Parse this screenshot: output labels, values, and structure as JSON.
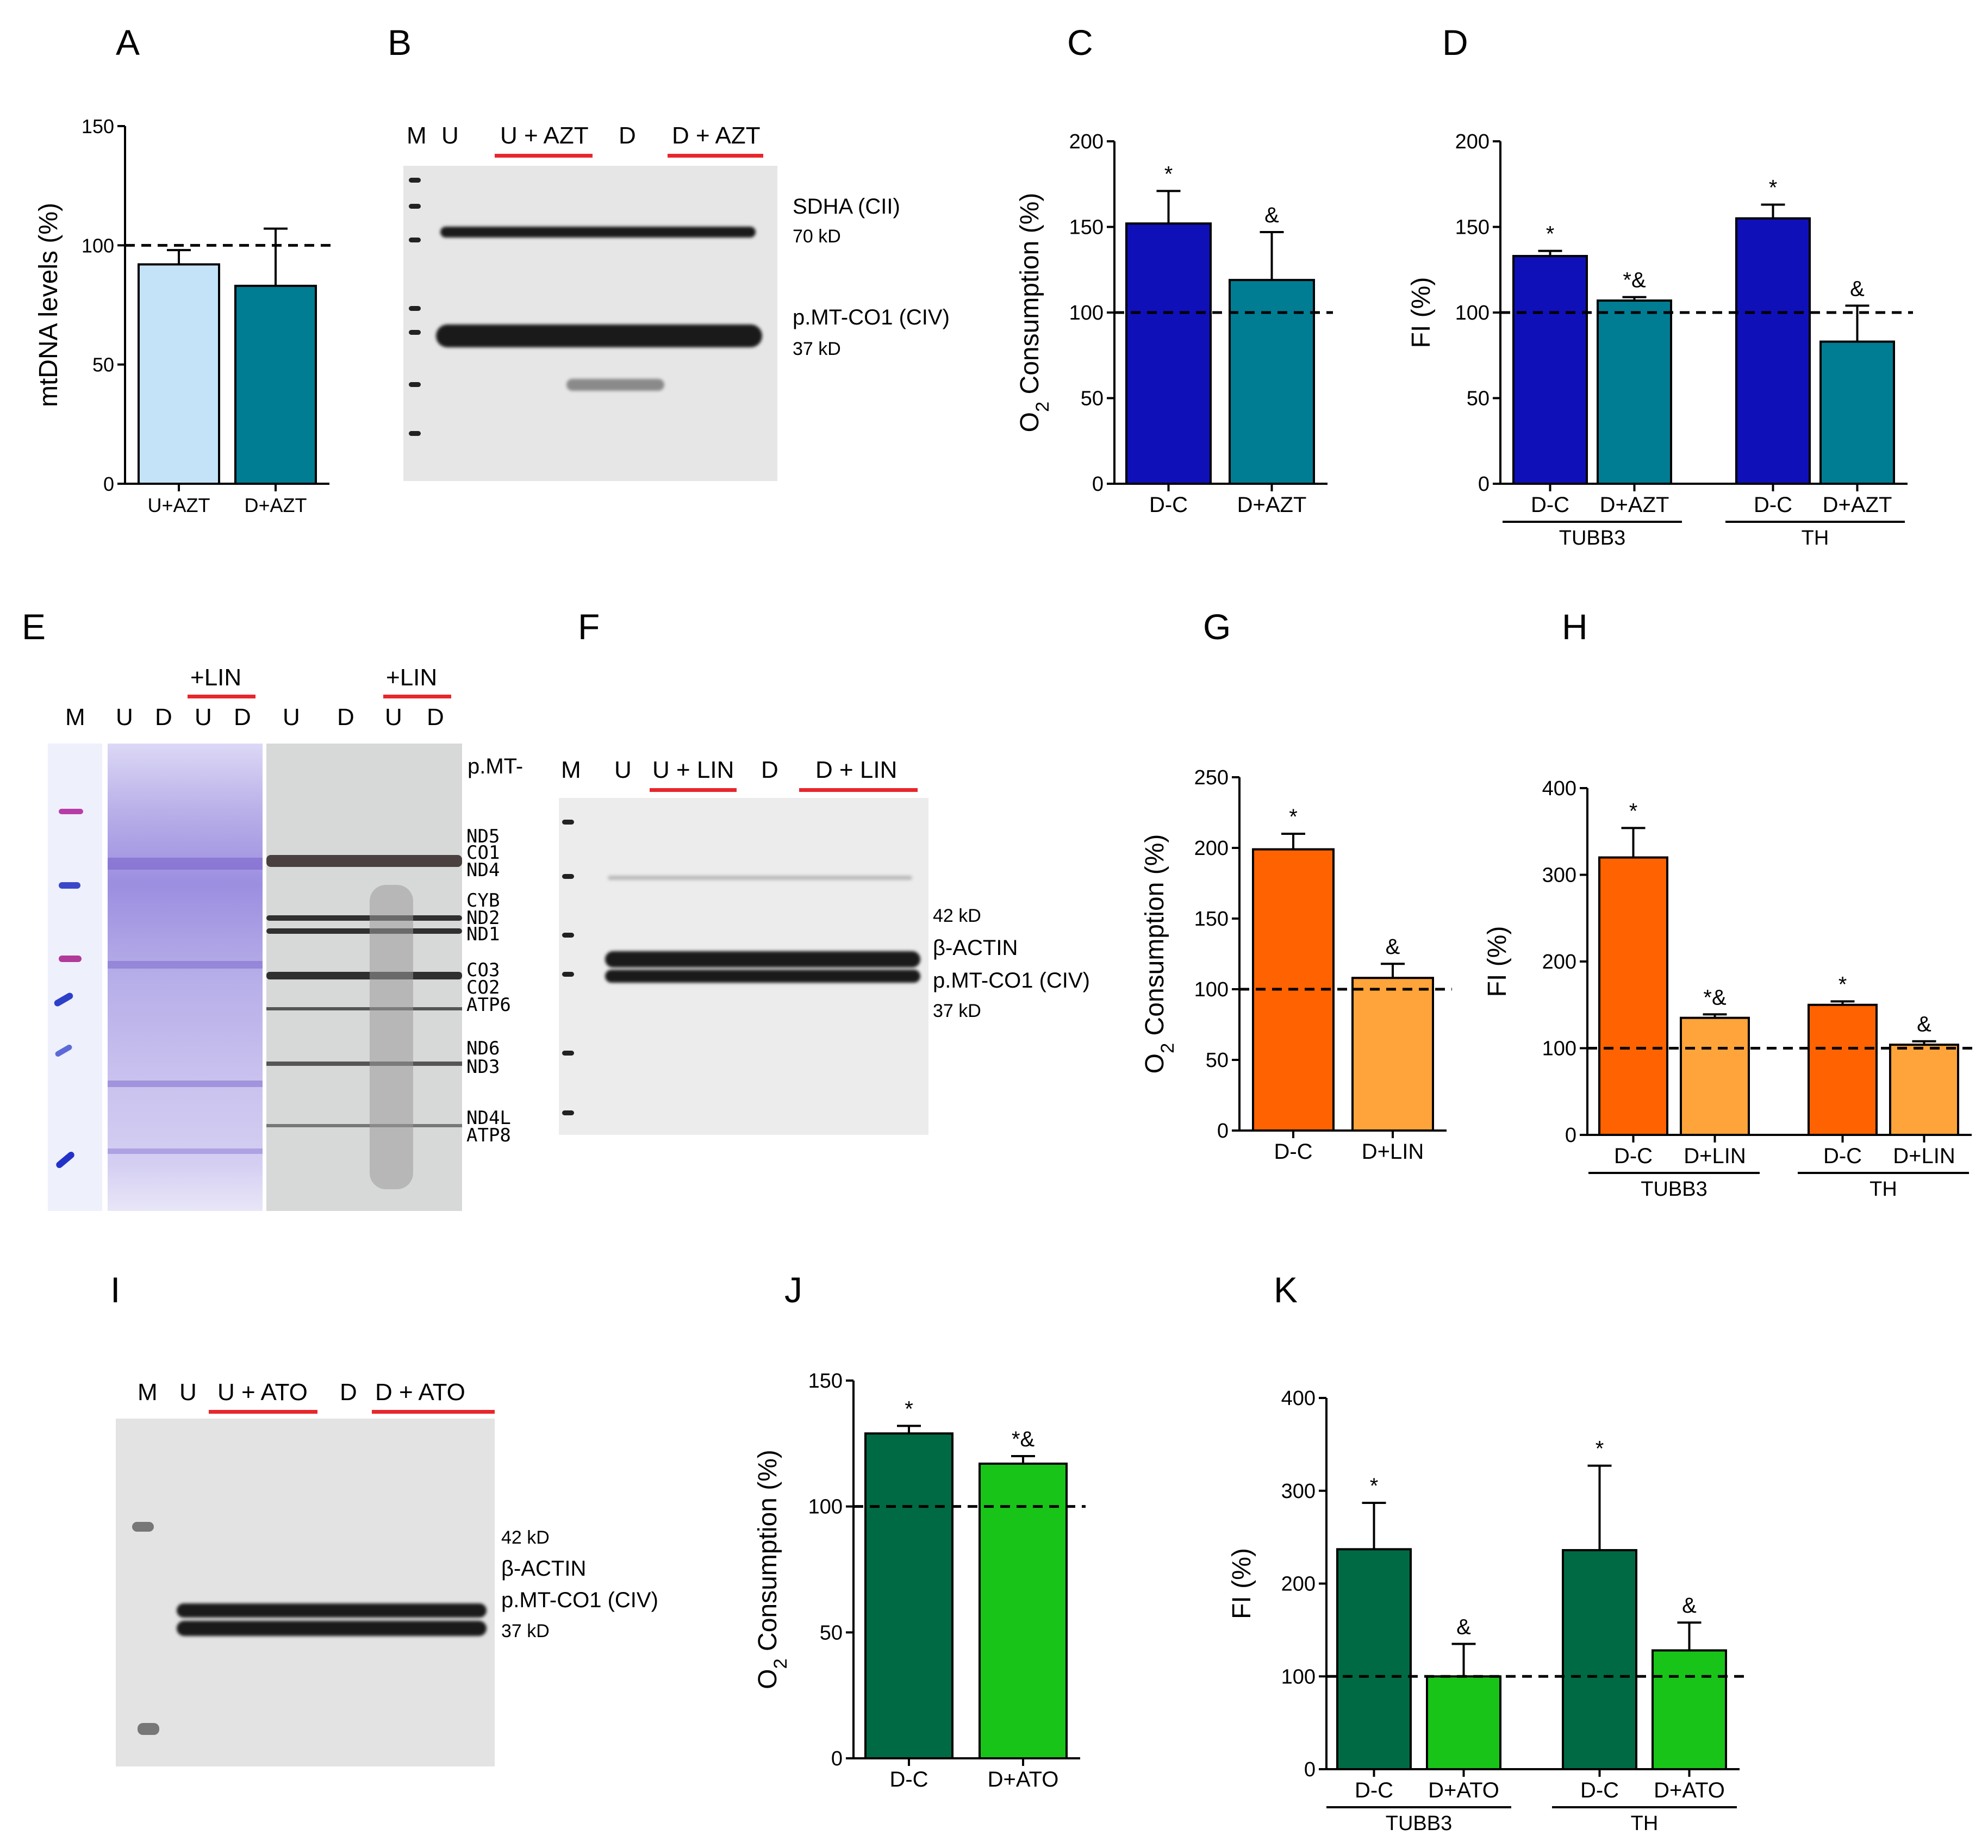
{
  "letters": {
    "A": "A",
    "B": "B",
    "C": "C",
    "D": "D",
    "E": "E",
    "F": "F",
    "G": "G",
    "H": "H",
    "I": "I",
    "J": "J",
    "K": "K"
  },
  "colors": {
    "light_blue": "#c5e3f8",
    "teal": "#007d93",
    "navy": "#1010b8",
    "orange_dark": "#ff6200",
    "orange_light": "#ffa43a",
    "green_dark": "#006a44",
    "green_light": "#19c419",
    "red": "#e8262c"
  },
  "blotB": {
    "lanes": [
      "M",
      "U",
      "U + AZT",
      "D",
      "D + AZT"
    ],
    "labels": [
      "SDHA (CII)",
      "70 kD",
      "p.MT-CO1 (CIV)",
      "37 kD"
    ]
  },
  "gelE": {
    "lanes_top": [
      "+LIN",
      "+LIN"
    ],
    "lanes": [
      "M",
      "U",
      "D",
      "U",
      "D",
      "U",
      "D",
      "U",
      "D"
    ],
    "genes": [
      "p.MT-",
      "ND5",
      "CO1",
      "ND4",
      "CYB",
      "ND2",
      "ND1",
      "CO3",
      "CO2",
      "ATP6",
      "ND6",
      "ND3",
      "ND4L",
      "ATP8"
    ]
  },
  "blotF": {
    "lanes": [
      "M",
      "U",
      "U + LIN",
      "D",
      "D + LIN"
    ],
    "labels": [
      "42 kD",
      "β-ACTIN",
      "p.MT-CO1 (CIV)",
      "37 kD"
    ]
  },
  "blotI": {
    "lanes": [
      "M",
      "U",
      "U + ATO",
      "D",
      "D + ATO"
    ],
    "labels": [
      "42 kD",
      "β-ACTIN",
      "p.MT-CO1 (CIV)",
      "37 kD"
    ]
  },
  "chart_data": [
    {
      "panel": "A",
      "type": "bar",
      "title": "",
      "xlabel": "",
      "ylabel": "mtDNA levels (%)",
      "ylim": [
        0,
        150
      ],
      "yticks": [
        0,
        50,
        100,
        150
      ],
      "reference_line": 100,
      "categories": [
        "U+AZT",
        "D+AZT"
      ],
      "values": [
        92,
        83
      ],
      "errors": [
        6,
        24
      ],
      "annotations": [
        "",
        ""
      ],
      "bar_colors": [
        "light_blue",
        "teal"
      ]
    },
    {
      "panel": "C",
      "type": "bar",
      "ylabel": "O2 Consumption (%)",
      "ylim": [
        0,
        200
      ],
      "yticks": [
        0,
        50,
        100,
        150,
        200
      ],
      "reference_line": 100,
      "categories": [
        "D-C",
        "D+AZT"
      ],
      "values": [
        152,
        119
      ],
      "errors": [
        19,
        28
      ],
      "annotations": [
        "*",
        "&"
      ],
      "bar_colors": [
        "navy",
        "teal"
      ]
    },
    {
      "panel": "D",
      "type": "bar",
      "ylabel": "FI (%)",
      "ylim": [
        0,
        200
      ],
      "yticks": [
        0,
        50,
        100,
        150,
        200
      ],
      "reference_line": 100,
      "categories": [
        "D-C",
        "D+AZT",
        "D-C",
        "D+AZT"
      ],
      "groups": [
        "TUBB3",
        "TH"
      ],
      "values": [
        133,
        107,
        155,
        83
      ],
      "errors": [
        3,
        2,
        8,
        21
      ],
      "annotations": [
        "*",
        "*&",
        "*",
        "&"
      ],
      "bar_colors": [
        "navy",
        "teal",
        "navy",
        "teal"
      ]
    },
    {
      "panel": "G",
      "type": "bar",
      "ylabel": "O2 Consumption (%)",
      "ylim": [
        0,
        250
      ],
      "yticks": [
        0,
        50,
        100,
        150,
        200,
        250
      ],
      "reference_line": 100,
      "categories": [
        "D-C",
        "D+LIN"
      ],
      "values": [
        199,
        108
      ],
      "errors": [
        11,
        10
      ],
      "annotations": [
        "*",
        "&"
      ],
      "bar_colors": [
        "orange_dark",
        "orange_light"
      ]
    },
    {
      "panel": "H",
      "type": "bar",
      "ylabel": "FI (%)",
      "ylim": [
        0,
        400
      ],
      "yticks": [
        0,
        100,
        200,
        300,
        400
      ],
      "reference_line": 100,
      "categories": [
        "D-C",
        "D+LIN",
        "D-C",
        "D+LIN"
      ],
      "groups": [
        "TUBB3",
        "TH"
      ],
      "values": [
        320,
        135,
        150,
        104
      ],
      "errors": [
        34,
        4,
        4,
        4
      ],
      "annotations": [
        "*",
        "*&",
        "*",
        "&"
      ],
      "bar_colors": [
        "orange_dark",
        "orange_light",
        "orange_dark",
        "orange_light"
      ]
    },
    {
      "panel": "J",
      "type": "bar",
      "ylabel": "O2 Consumption (%)",
      "ylim": [
        0,
        150
      ],
      "yticks": [
        0,
        50,
        100,
        150
      ],
      "reference_line": 100,
      "categories": [
        "D-C",
        "D+ATO"
      ],
      "values": [
        129,
        117
      ],
      "errors": [
        3,
        3
      ],
      "annotations": [
        "*",
        "*&"
      ],
      "bar_colors": [
        "green_dark",
        "green_light"
      ]
    },
    {
      "panel": "K",
      "type": "bar",
      "ylabel": "FI (%)",
      "ylim": [
        0,
        400
      ],
      "yticks": [
        0,
        100,
        200,
        300,
        400
      ],
      "reference_line": 100,
      "categories": [
        "D-C",
        "D+ATO",
        "D-C",
        "D+ATO"
      ],
      "groups": [
        "TUBB3",
        "TH"
      ],
      "values": [
        237,
        100,
        236,
        128
      ],
      "errors": [
        50,
        35,
        91,
        30
      ],
      "annotations": [
        "*",
        "&",
        "*",
        "&"
      ],
      "bar_colors": [
        "green_dark",
        "green_light",
        "green_dark",
        "green_light"
      ]
    }
  ]
}
